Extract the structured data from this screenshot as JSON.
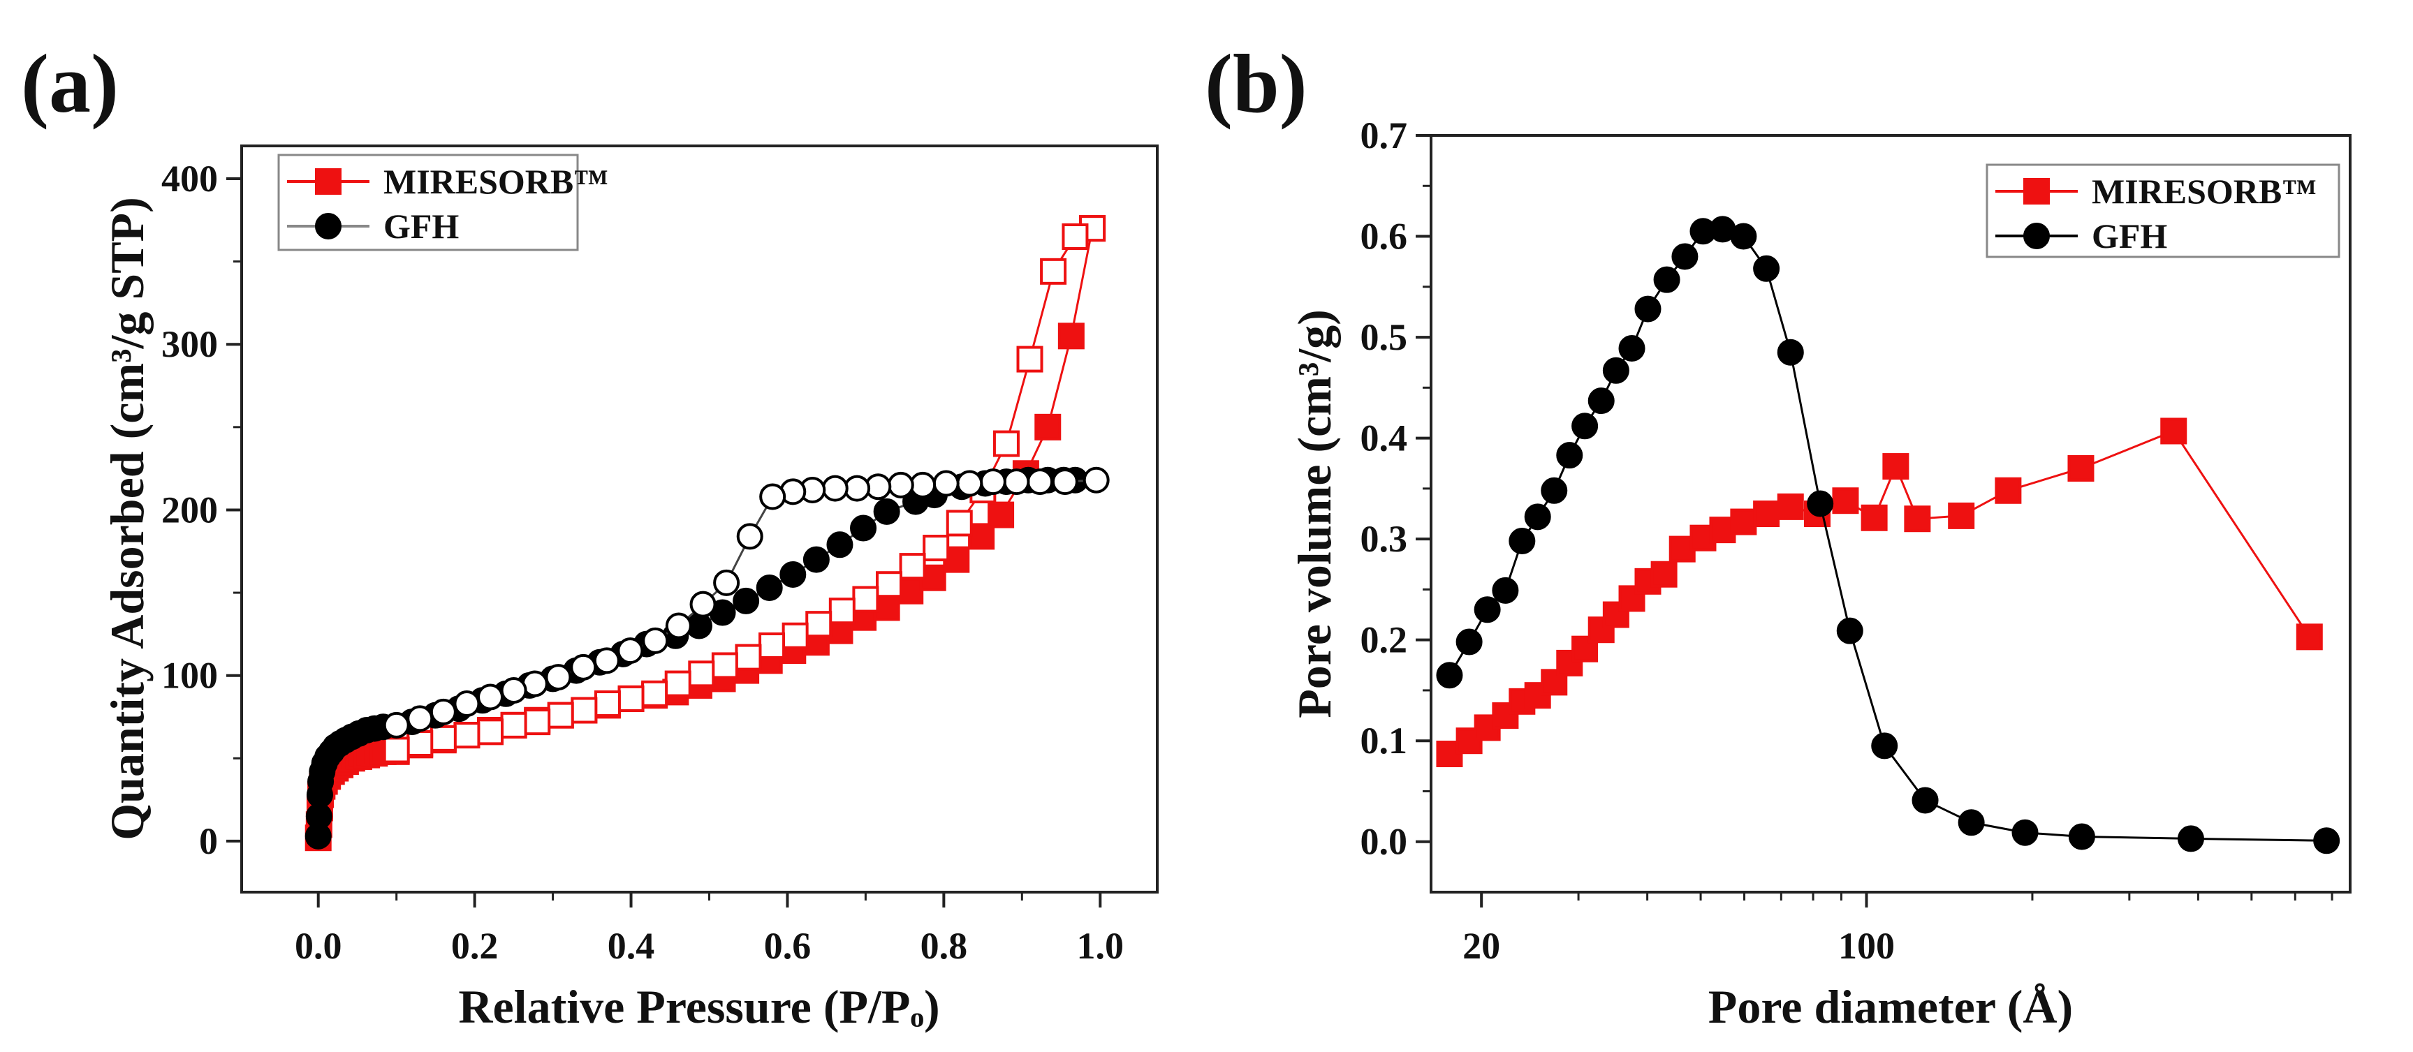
{
  "chart_data": [
    {
      "panel_label": "(a)",
      "type": "scatter",
      "xscale": "linear",
      "xlabel": "Relative Pressure (P/Pₒ)",
      "ylabel": "Quantity Adsorbed (cm³/g STP)",
      "xlim": [
        -0.098,
        1.073
      ],
      "ylim": [
        -30.8,
        419.8
      ],
      "xticks": [
        {
          "v": 0.0,
          "label": "0.0"
        },
        {
          "v": 0.2,
          "label": "0.2"
        },
        {
          "v": 0.4,
          "label": "0.4"
        },
        {
          "v": 0.6,
          "label": "0.6"
        },
        {
          "v": 0.8,
          "label": "0.8"
        },
        {
          "v": 1.0,
          "label": "1.0"
        }
      ],
      "xminor": [
        0.1,
        0.3,
        0.5,
        0.7,
        0.9
      ],
      "yticks": [
        {
          "v": 0,
          "label": "0"
        },
        {
          "v": 100,
          "label": "100"
        },
        {
          "v": 200,
          "label": "200"
        },
        {
          "v": 300,
          "label": "300"
        },
        {
          "v": 400,
          "label": "400"
        }
      ],
      "yminor": [
        50,
        150,
        250,
        350
      ],
      "grid": false,
      "legend_position": "top-left",
      "legend": [
        {
          "name": "MIRESORB™",
          "color": "#ee1111",
          "marker": "square",
          "line_color": "#ee1111"
        },
        {
          "name": "GFH",
          "color": "#000000",
          "marker": "circle",
          "line_color": "#888888"
        }
      ],
      "series": [
        {
          "name": "MIRESORB™ adsorption",
          "color": "#ee1111",
          "marker": "square",
          "filled": true,
          "line": true,
          "x": [
            0.0,
            0.001,
            0.002,
            0.003,
            0.005,
            0.008,
            0.012,
            0.017,
            0.022,
            0.028,
            0.035,
            0.043,
            0.052,
            0.062,
            0.072,
            0.083,
            0.1,
            0.13,
            0.16,
            0.19,
            0.22,
            0.25,
            0.28,
            0.31,
            0.34,
            0.37,
            0.4,
            0.43,
            0.457,
            0.487,
            0.517,
            0.547,
            0.577,
            0.607,
            0.637,
            0.667,
            0.697,
            0.727,
            0.757,
            0.786,
            0.816,
            0.848,
            0.873,
            0.905,
            0.933,
            0.963,
            0.99
          ],
          "y": [
            2,
            10,
            20,
            28,
            33,
            36,
            39,
            42,
            44,
            46,
            48,
            50,
            51,
            52,
            53,
            54,
            54,
            58,
            61,
            64,
            67,
            70,
            73,
            76,
            79,
            82,
            86,
            88,
            90,
            94,
            98,
            103,
            109,
            115,
            120,
            127,
            135,
            141,
            151,
            159,
            170,
            184,
            197,
            222,
            250,
            305,
            370
          ]
        },
        {
          "name": "MIRESORB™ desorption",
          "color": "#ee1111",
          "marker": "square",
          "filled": false,
          "line": true,
          "x": [
            0.99,
            0.968,
            0.94,
            0.91,
            0.88,
            0.85,
            0.82,
            0.79,
            0.76,
            0.73,
            0.7,
            0.67,
            0.64,
            0.61,
            0.58,
            0.55,
            0.52,
            0.49,
            0.46,
            0.43,
            0.4,
            0.37,
            0.34,
            0.31,
            0.28,
            0.25,
            0.22,
            0.19,
            0.16,
            0.13,
            0.1
          ],
          "y": [
            370,
            365,
            344,
            291,
            240,
            212,
            192,
            177,
            166,
            155,
            146,
            139,
            131,
            124,
            118,
            111,
            106,
            101,
            95,
            89,
            86,
            83,
            79,
            76,
            72,
            70,
            66,
            64,
            62,
            59,
            55
          ]
        },
        {
          "name": "GFH adsorption",
          "color": "#000000",
          "marker": "circle",
          "filled": true,
          "line": true,
          "x": [
            0.0,
            0.001,
            0.002,
            0.003,
            0.005,
            0.008,
            0.012,
            0.017,
            0.022,
            0.028,
            0.035,
            0.043,
            0.052,
            0.062,
            0.072,
            0.083,
            0.12,
            0.15,
            0.18,
            0.21,
            0.24,
            0.27,
            0.3,
            0.33,
            0.36,
            0.39,
            0.42,
            0.457,
            0.487,
            0.517,
            0.547,
            0.577,
            0.607,
            0.637,
            0.667,
            0.697,
            0.727,
            0.764,
            0.788,
            0.823,
            0.853,
            0.88,
            0.908,
            0.933,
            0.953,
            0.968
          ],
          "y": [
            3,
            15,
            28,
            36,
            42,
            47,
            51,
            54,
            57,
            59,
            61,
            63,
            65,
            67,
            68,
            69,
            72,
            76,
            80,
            85,
            89,
            94,
            98,
            103,
            108,
            113,
            119,
            124,
            130,
            138,
            145,
            153,
            161,
            170,
            179,
            189,
            199,
            205,
            209,
            214,
            216,
            217,
            218,
            218,
            218,
            218
          ]
        },
        {
          "name": "GFH desorption",
          "color": "#000000",
          "marker": "circle",
          "filled": false,
          "line": true,
          "x": [
            0.995,
            0.955,
            0.923,
            0.893,
            0.863,
            0.833,
            0.803,
            0.773,
            0.745,
            0.716,
            0.689,
            0.661,
            0.632,
            0.607,
            0.581,
            0.552,
            0.522,
            0.492,
            0.461,
            0.431,
            0.399,
            0.369,
            0.339,
            0.307,
            0.277,
            0.25,
            0.22,
            0.19,
            0.16,
            0.13,
            0.1
          ],
          "y": [
            218,
            217,
            217,
            217,
            217,
            216,
            216,
            215,
            215,
            214,
            213,
            213,
            212,
            211,
            208,
            184,
            156,
            143,
            130,
            121,
            115,
            109,
            105,
            99,
            95,
            91,
            87,
            83,
            78,
            74,
            70
          ]
        }
      ]
    },
    {
      "panel_label": "(b)",
      "type": "line",
      "xscale": "log",
      "xlabel": "Pore diameter (Å)",
      "ylabel": "Pore volume (cm³/g)",
      "xlim": [
        16.2,
        755
      ],
      "ylim": [
        -0.05,
        0.7
      ],
      "xticks": [
        {
          "v": 20,
          "label": "20"
        },
        {
          "v": 100,
          "label": "100"
        }
      ],
      "xminor": [
        30,
        40,
        50,
        60,
        70,
        80,
        90,
        200,
        300,
        400,
        500,
        600,
        700
      ],
      "yticks": [
        {
          "v": 0.0,
          "label": "0.0"
        },
        {
          "v": 0.1,
          "label": "0.1"
        },
        {
          "v": 0.2,
          "label": "0.2"
        },
        {
          "v": 0.3,
          "label": "0.3"
        },
        {
          "v": 0.4,
          "label": "0.4"
        },
        {
          "v": 0.5,
          "label": "0.5"
        },
        {
          "v": 0.6,
          "label": "0.6"
        },
        {
          "v": 0.7,
          "label": "0.7"
        }
      ],
      "yminor": [
        0.05,
        0.15,
        0.25,
        0.35,
        0.45,
        0.55,
        0.65
      ],
      "grid": false,
      "legend_position": "top-right",
      "legend": [
        {
          "name": "MIRESORB™",
          "color": "#ee1111",
          "marker": "square",
          "line_color": "#ee1111"
        },
        {
          "name": "GFH",
          "color": "#000000",
          "marker": "circle",
          "line_color": "#000000"
        }
      ],
      "series": [
        {
          "name": "MIRESORB™",
          "color": "#ee1111",
          "marker": "square",
          "filled": true,
          "line": true,
          "x": [
            17.5,
            19.0,
            20.5,
            22.1,
            23.7,
            25.3,
            27.1,
            28.9,
            30.8,
            33.0,
            35.1,
            37.5,
            40.1,
            42.9,
            46.3,
            50.5,
            54.8,
            59.8,
            65.8,
            72.8,
            81.4,
            91.6,
            103.3,
            113,
            123.7,
            148.6,
            180.8,
            245,
            361,
            637
          ],
          "y": [
            0.087,
            0.1,
            0.113,
            0.125,
            0.139,
            0.145,
            0.158,
            0.177,
            0.191,
            0.21,
            0.225,
            0.241,
            0.258,
            0.265,
            0.29,
            0.301,
            0.309,
            0.317,
            0.325,
            0.332,
            0.325,
            0.338,
            0.321,
            0.372,
            0.32,
            0.323,
            0.348,
            0.37,
            0.407,
            0.203
          ]
        },
        {
          "name": "GFH",
          "color": "#000000",
          "marker": "circle",
          "filled": true,
          "line": true,
          "x": [
            17.5,
            19.0,
            20.5,
            22.1,
            23.7,
            25.3,
            27.1,
            28.9,
            30.8,
            33.0,
            35.1,
            37.5,
            40.1,
            43.4,
            46.8,
            50.5,
            54.8,
            59.8,
            65.8,
            72.8,
            82.4,
            93.3,
            107.8,
            127.8,
            155,
            194,
            246,
            388,
            684
          ],
          "y": [
            0.165,
            0.198,
            0.23,
            0.249,
            0.298,
            0.322,
            0.348,
            0.383,
            0.412,
            0.437,
            0.467,
            0.489,
            0.528,
            0.557,
            0.58,
            0.605,
            0.607,
            0.6,
            0.568,
            0.485,
            0.335,
            0.209,
            0.095,
            0.041,
            0.019,
            0.009,
            0.005,
            0.003,
            0.001
          ]
        }
      ]
    }
  ]
}
